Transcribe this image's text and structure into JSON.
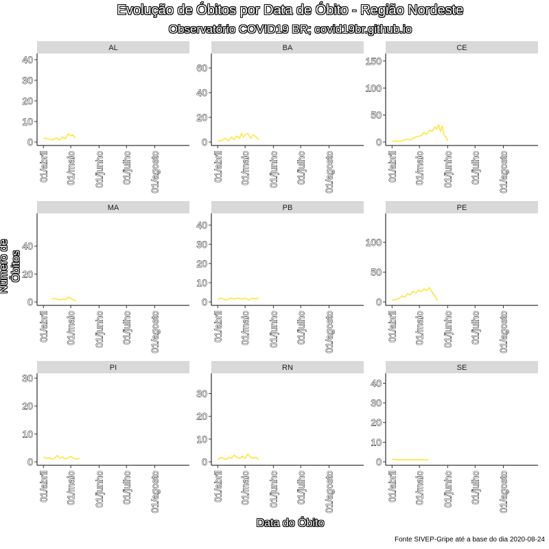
{
  "chart_data": {
    "type": "line",
    "title": "Evolução de Óbitos por Data de Óbito - Região Nordeste",
    "subtitle": "Observatório COVID19 BR; covid19br.github.io",
    "xlabel": "Data do Óbito",
    "ylabel": "Número de Óbitos",
    "source": "Fonte  SIVEP-Gripe até a base do dia 2020-08-24",
    "x_ticks": [
      "01/abril",
      "01/maio",
      "01/junho",
      "01/julho",
      "01/agosto"
    ],
    "x_range_days": [
      -7,
      160
    ],
    "line_color": "#ffe63a",
    "panels": [
      {
        "name": "AL",
        "ylim": [
          0,
          42
        ],
        "yticks": [
          0,
          10,
          20,
          30,
          40
        ],
        "x": [
          0,
          5,
          10,
          14,
          18,
          21,
          24,
          27,
          30,
          32,
          35
        ],
        "y": [
          2,
          1.5,
          1,
          2,
          1,
          2.5,
          1.5,
          4,
          3,
          3.5,
          2
        ]
      },
      {
        "name": "BA",
        "ylim": [
          0,
          70
        ],
        "yticks": [
          0,
          20,
          40,
          60
        ],
        "x": [
          0,
          4,
          8,
          12,
          15,
          18,
          21,
          24,
          26,
          28,
          30,
          33,
          36,
          39,
          42,
          45
        ],
        "y": [
          1,
          1,
          3,
          1,
          4,
          2,
          5,
          3,
          7,
          4,
          6,
          7,
          3,
          6,
          4,
          2
        ]
      },
      {
        "name": "CE",
        "ylim": [
          0,
          160
        ],
        "yticks": [
          0,
          50,
          100,
          150
        ],
        "x": [
          0,
          4,
          8,
          12,
          16,
          20,
          24,
          28,
          32,
          35,
          38,
          41,
          44,
          47,
          49,
          51,
          53,
          55,
          57,
          59,
          61
        ],
        "y": [
          1,
          2,
          1,
          3,
          5,
          4,
          8,
          10,
          12,
          18,
          14,
          22,
          20,
          28,
          24,
          32,
          20,
          30,
          12,
          10,
          2
        ]
      },
      {
        "name": "MA",
        "ylim": [
          0,
          62
        ],
        "yticks": [
          0,
          20,
          40
        ],
        "x": [
          9,
          12,
          15,
          18,
          21,
          24,
          27,
          30,
          33,
          36
        ],
        "y": [
          2,
          2.5,
          2,
          1.5,
          2,
          1.5,
          3.5,
          2.5,
          1.5,
          1
        ]
      },
      {
        "name": "PB",
        "ylim": [
          0,
          45
        ],
        "yticks": [
          0,
          10,
          20,
          30,
          40
        ],
        "x": [
          0,
          3,
          6,
          10,
          14,
          18,
          22,
          26,
          30,
          34,
          38,
          42,
          45
        ],
        "y": [
          1,
          2,
          1.5,
          1,
          2,
          1.5,
          2,
          1.5,
          2,
          1,
          2,
          1.5,
          2
        ]
      },
      {
        "name": "PE",
        "ylim": [
          0,
          145
        ],
        "yticks": [
          0,
          50,
          100
        ],
        "x": [
          0,
          4,
          8,
          11,
          14,
          17,
          20,
          23,
          26,
          29,
          32,
          35,
          38,
          41,
          44,
          47,
          50
        ],
        "y": [
          3,
          4,
          6,
          10,
          8,
          14,
          12,
          18,
          15,
          20,
          17,
          22,
          19,
          24,
          16,
          10,
          2
        ]
      },
      {
        "name": "PI",
        "ylim": [
          0,
          31
        ],
        "yticks": [
          0,
          10,
          20,
          30
        ],
        "x": [
          0,
          3,
          6,
          9,
          12,
          15,
          18,
          21,
          24,
          27,
          30,
          33,
          36,
          40
        ],
        "y": [
          1.8,
          1.2,
          1.5,
          1,
          1.2,
          2.3,
          1.3,
          1.8,
          1,
          1.4,
          2,
          1.2,
          1,
          1.2
        ]
      },
      {
        "name": "RN",
        "ylim": [
          0,
          38
        ],
        "yticks": [
          0,
          10,
          20,
          30
        ],
        "x": [
          0,
          3,
          6,
          9,
          12,
          15,
          18,
          21,
          24,
          27,
          30,
          33,
          36,
          39,
          42,
          45
        ],
        "y": [
          1,
          2,
          1.5,
          1,
          2,
          1.5,
          3,
          2,
          1.5,
          2.5,
          1.5,
          3.5,
          2,
          1.5,
          2,
          1
        ]
      },
      {
        "name": "SE",
        "ylim": [
          0,
          44
        ],
        "yticks": [
          0,
          10,
          20,
          30,
          40
        ],
        "x": [
          0,
          5,
          10,
          15,
          20,
          25,
          30,
          35,
          40
        ],
        "y": [
          1.5,
          1,
          1,
          1,
          1,
          1,
          1,
          1,
          1
        ]
      }
    ]
  }
}
